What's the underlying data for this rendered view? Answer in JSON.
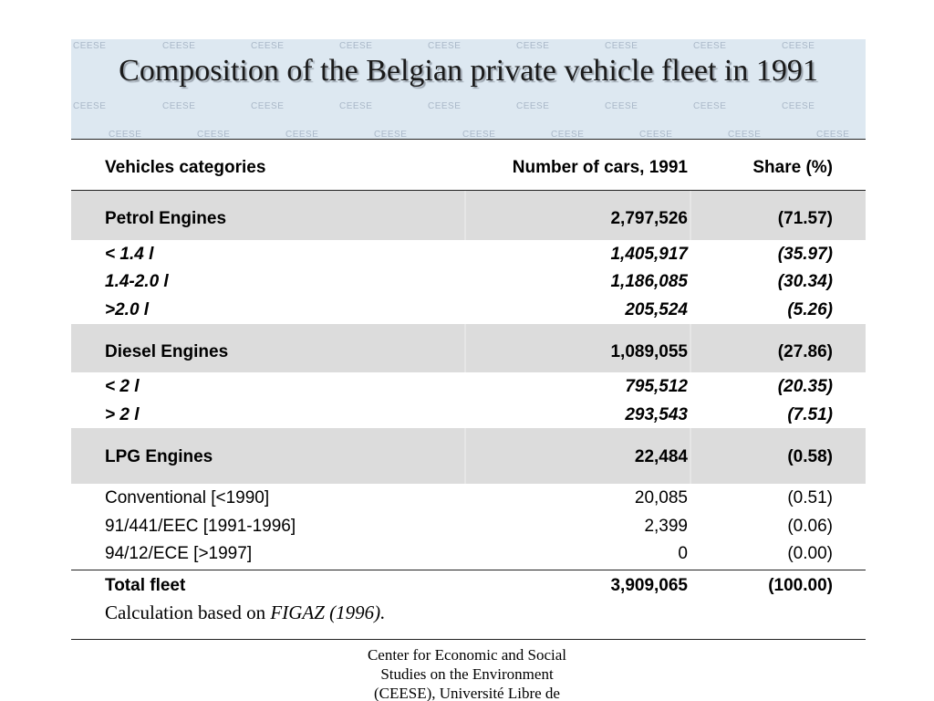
{
  "slide": {
    "title": "Composition of the Belgian private vehicle fleet in 1991",
    "watermark": "CEESE"
  },
  "table": {
    "headers": {
      "category": "Vehicles categories",
      "count": "Number of cars, 1991",
      "share": "Share  (%)"
    },
    "rows": [
      {
        "category": "Petrol Engines",
        "count": "2,797,526",
        "share": "(71.57)"
      },
      {
        "category": "< 1.4 l",
        "count": "1,405,917",
        "share": "(35.97)"
      },
      {
        "category": "1.4-2.0 l",
        "count": "1,186,085",
        "share": "(30.34)"
      },
      {
        "category": ">2.0 l",
        "count": "205,524",
        "share": "(5.26)"
      },
      {
        "category": "Diesel Engines",
        "count": "1,089,055",
        "share": "(27.86)"
      },
      {
        "category": "< 2 l",
        "count": "795,512",
        "share": "(20.35)"
      },
      {
        "category": "> 2 l",
        "count": "293,543",
        "share": "(7.51)"
      },
      {
        "category": "LPG Engines",
        "count": "22,484",
        "share": "(0.58)"
      },
      {
        "category": "Conventional [<1990]",
        "count": "20,085",
        "share": "(0.51)"
      },
      {
        "category": "91/441/EEC [1991-1996]",
        "count": "2,399",
        "share": "(0.06)"
      },
      {
        "category": "94/12/ECE [>1997]",
        "count": "0",
        "share": "(0.00)"
      },
      {
        "category": "Total fleet",
        "count": "3,909,065",
        "share": "(100.00)"
      }
    ]
  },
  "note": {
    "prefix": "Calculation based on ",
    "source": "FIGAZ (1996)."
  },
  "footer": {
    "line1": "Center for Economic and Social",
    "line2": "Studies on the Environment",
    "line3": "(CEESE), Université Libre de"
  }
}
